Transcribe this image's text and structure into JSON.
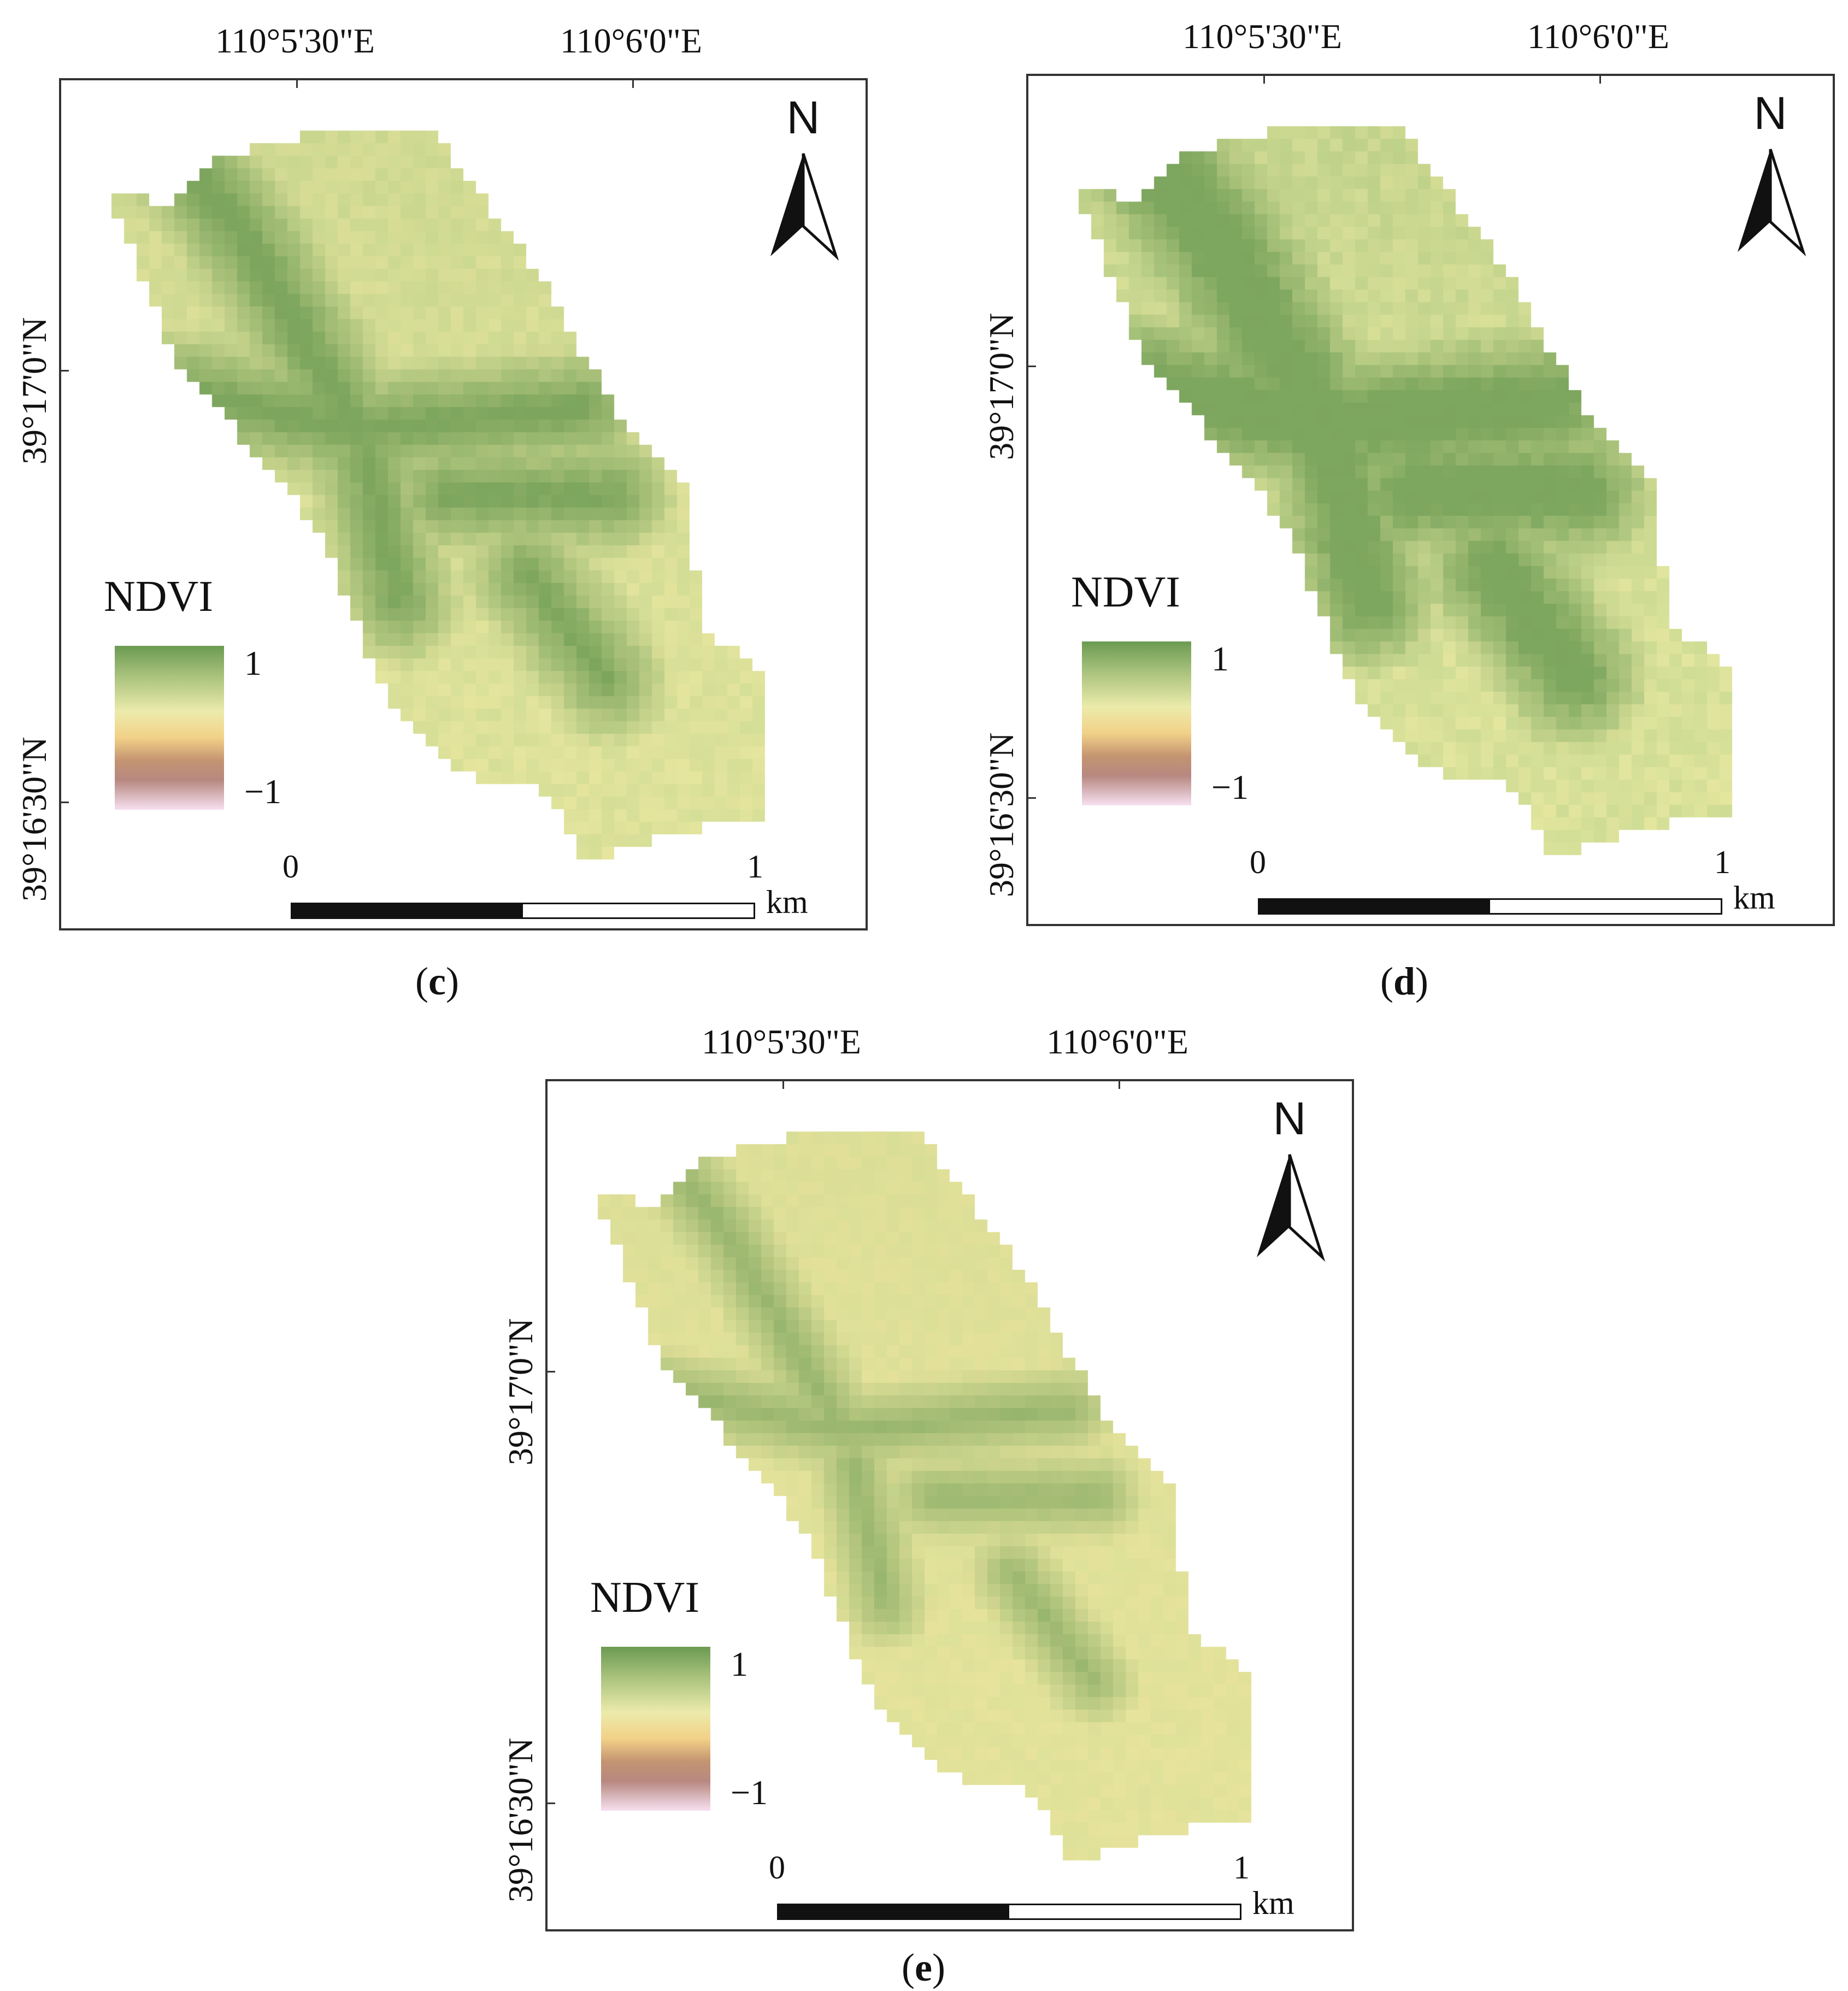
{
  "colors": {
    "ndvi_high": "#6b9a52",
    "ndvi_mid": "#ecebab",
    "ndvi_low": "#f2d188",
    "ndvi_neg": "#b78880",
    "ndvi_min": "#f6e0f0"
  },
  "panels": [
    {
      "id": "c",
      "letter": "c",
      "lon_labels": [
        "110°5'30\"E",
        "110°6'0\"E"
      ],
      "lat_labels": [
        "39°17'0\"N",
        "39°16'30\"N"
      ],
      "north_label": "N",
      "legend": {
        "title": "NDVI",
        "max_label": "1",
        "min_label": "−1"
      },
      "scale": {
        "start": "0",
        "end": "1",
        "unit": "km"
      },
      "greenness": 0.55
    },
    {
      "id": "d",
      "letter": "d",
      "lon_labels": [
        "110°5'30\"E",
        "110°6'0\"E"
      ],
      "lat_labels": [
        "39°17'0\"N",
        "39°16'30\"N"
      ],
      "north_label": "N",
      "legend": {
        "title": "NDVI",
        "max_label": "1",
        "min_label": "−1"
      },
      "scale": {
        "start": "0",
        "end": "1",
        "unit": "km"
      },
      "greenness": 0.75
    },
    {
      "id": "e",
      "letter": "e",
      "lon_labels": [
        "110°5'30\"E",
        "110°6'0\"E"
      ],
      "lat_labels": [
        "39°17'0\"N",
        "39°16'30\"N"
      ],
      "north_label": "N",
      "legend": {
        "title": "NDVI",
        "max_label": "1",
        "min_label": "−1"
      },
      "scale": {
        "start": "0",
        "end": "1",
        "unit": "km"
      },
      "greenness": 0.25
    }
  ]
}
